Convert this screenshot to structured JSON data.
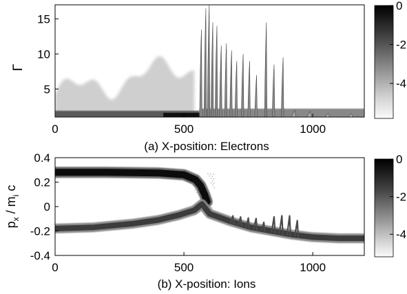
{
  "chart_data": [
    {
      "id": "panel-a",
      "type": "heatmap",
      "caption": "(a) X-position: Electrons",
      "xlabel": "",
      "ylabel": "Γ",
      "xlim": [
        0,
        1200
      ],
      "ylim": [
        1,
        17
      ],
      "xticks": [
        0,
        500,
        1000
      ],
      "yticks": [
        5,
        10,
        15
      ],
      "colorbar": {
        "ticks": [
          0,
          -2,
          -4
        ],
        "range": [
          -5.8,
          0
        ],
        "colormap": "gray-reversed"
      },
      "background_band": {
        "x_range": [
          0,
          540
        ],
        "y_range": [
          1,
          9.5
        ],
        "level": -4.8
      },
      "ridges": [
        {
          "x": 568,
          "ymax": 13.5,
          "level": -3.2
        },
        {
          "x": 585,
          "ymax": 16.5,
          "level": -3.0
        },
        {
          "x": 598,
          "ymax": 17.0,
          "level": -3.0
        },
        {
          "x": 612,
          "ymax": 14.5,
          "level": -3.0
        },
        {
          "x": 628,
          "ymax": 14.0,
          "level": -3.0
        },
        {
          "x": 645,
          "ymax": 11.2,
          "level": -3.1
        },
        {
          "x": 665,
          "ymax": 11.5,
          "level": -3.1
        },
        {
          "x": 685,
          "ymax": 10.5,
          "level": -3.1
        },
        {
          "x": 705,
          "ymax": 9.0,
          "level": -3.2
        },
        {
          "x": 730,
          "ymax": 10.0,
          "level": -3.1
        },
        {
          "x": 755,
          "ymax": 9.0,
          "level": -3.2
        },
        {
          "x": 782,
          "ymax": 7.0,
          "level": -3.3
        },
        {
          "x": 820,
          "ymax": 14.5,
          "level": -3.0
        },
        {
          "x": 850,
          "ymax": 8.5,
          "level": -3.2
        },
        {
          "x": 885,
          "ymax": 9.5,
          "level": -3.1
        },
        {
          "x": 930,
          "ymax": 2.0,
          "level": -3.8
        },
        {
          "x": 990,
          "ymax": 1.8,
          "level": -4.0
        },
        {
          "x": 1060,
          "ymax": 1.5,
          "level": -4.2
        },
        {
          "x": 1150,
          "ymax": 1.5,
          "level": -4.2
        }
      ]
    },
    {
      "id": "panel-b",
      "type": "heatmap",
      "caption": "(b) X-position: Ions",
      "xlabel": "",
      "ylabel": "p_x / m_i c",
      "xlim": [
        0,
        1200
      ],
      "ylim": [
        -0.4,
        0.4
      ],
      "xticks": [
        0,
        500,
        1000
      ],
      "yticks": [
        0.4,
        0.2,
        0,
        -0.2,
        -0.4
      ],
      "ytick_labels": [
        "0.4",
        "0.2",
        "0",
        "-0.2",
        "-0.4"
      ],
      "colorbar": {
        "ticks": [
          0,
          -2,
          -4
        ],
        "range": [
          -5.2,
          0
        ],
        "colormap": "gray-reversed"
      },
      "upper_beam": [
        [
          0,
          0.28
        ],
        [
          200,
          0.28
        ],
        [
          400,
          0.275
        ],
        [
          500,
          0.26
        ],
        [
          545,
          0.22
        ],
        [
          565,
          0.17
        ],
        [
          580,
          0.1
        ],
        [
          590,
          0.04
        ]
      ],
      "lower_beam": [
        [
          0,
          -0.18
        ],
        [
          150,
          -0.17
        ],
        [
          300,
          -0.14
        ],
        [
          400,
          -0.11
        ],
        [
          480,
          -0.07
        ],
        [
          540,
          -0.03
        ],
        [
          570,
          0.02
        ],
        [
          600,
          -0.06
        ],
        [
          680,
          -0.12
        ],
        [
          760,
          -0.17
        ],
        [
          840,
          -0.2
        ],
        [
          920,
          -0.23
        ],
        [
          1000,
          -0.25
        ],
        [
          1100,
          -0.26
        ],
        [
          1200,
          -0.26
        ]
      ],
      "oscillations": [
        {
          "x": 690,
          "amp": 0.05
        },
        {
          "x": 720,
          "amp": 0.06
        },
        {
          "x": 750,
          "amp": 0.07
        },
        {
          "x": 780,
          "amp": 0.08
        },
        {
          "x": 810,
          "amp": 0.06
        },
        {
          "x": 850,
          "amp": 0.12
        },
        {
          "x": 880,
          "amp": 0.14
        },
        {
          "x": 910,
          "amp": 0.15
        },
        {
          "x": 940,
          "amp": 0.12
        }
      ]
    }
  ]
}
